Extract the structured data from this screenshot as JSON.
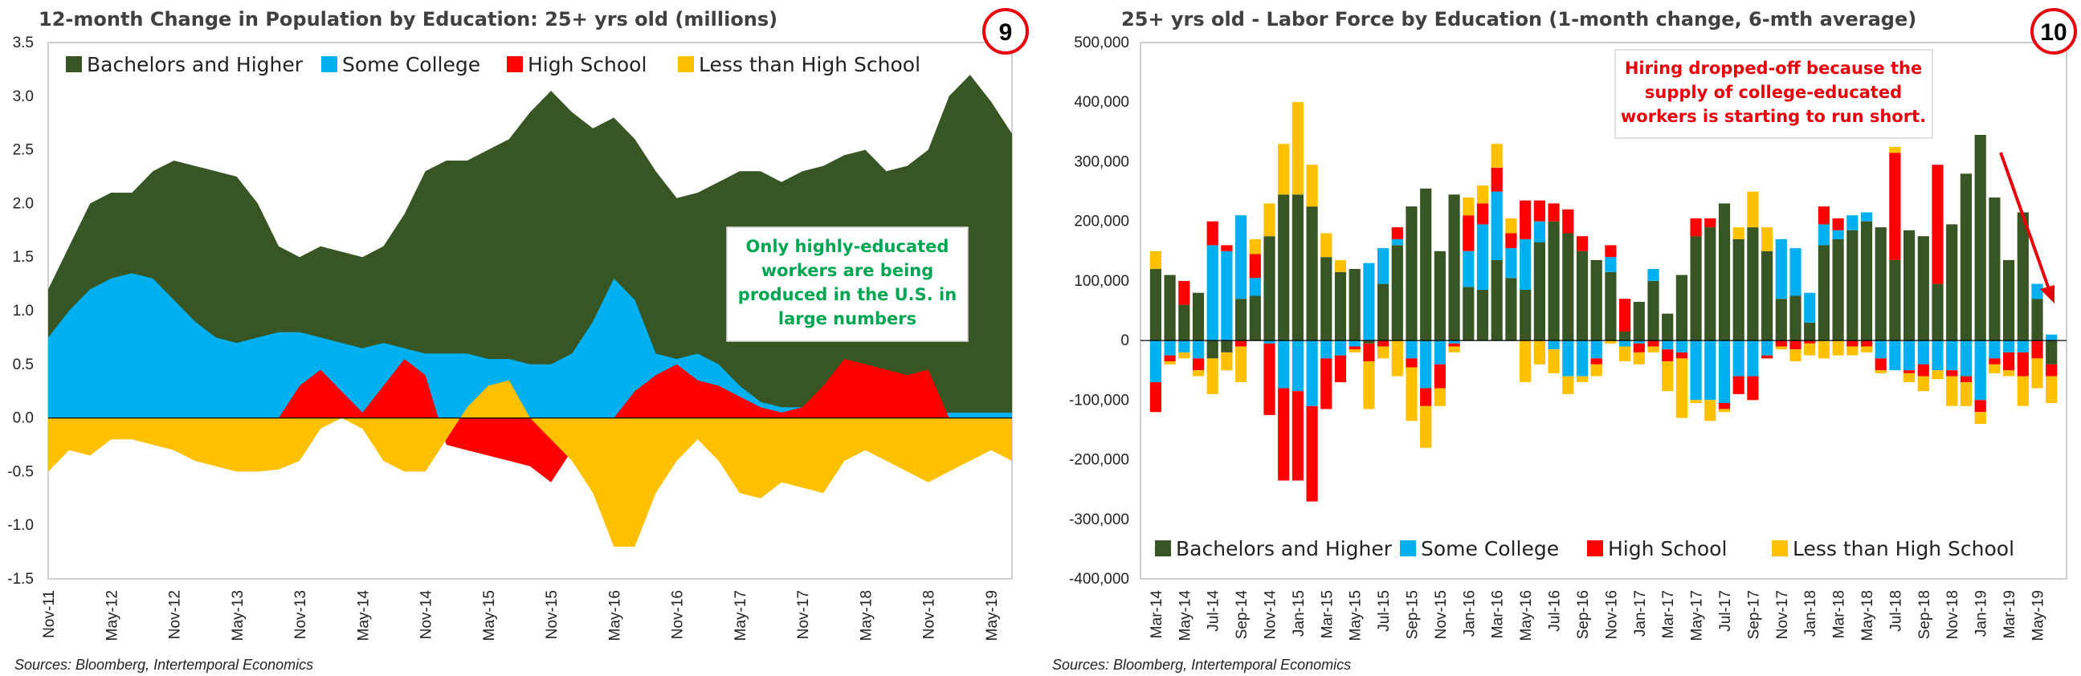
{
  "colors": {
    "bachelors": "#375623",
    "some_college": "#00B0F0",
    "high_school": "#FF0000",
    "less_than_hs": "#FFC000",
    "accent_red": "#E8000B",
    "note_green": "#00A651"
  },
  "left": {
    "title": "12-month Change in Population by Education: 25+ yrs old (millions)",
    "badge": "9",
    "source": "Sources: Bloomberg, Intertemporal Economics",
    "annotation": [
      "Only highly-educated",
      "workers are being",
      "produced in the U.S. in",
      "large numbers"
    ],
    "y_tick_labels": [
      "3.5",
      "3.0",
      "2.5",
      "2.0",
      "1.5",
      "1.0",
      "0.5",
      "0.0",
      "-0.5",
      "-1.0",
      "-1.5"
    ],
    "x_tick_labels": [
      "Nov-11",
      "May-12",
      "Nov-12",
      "May-13",
      "Nov-13",
      "May-14",
      "Nov-14",
      "May-15",
      "Nov-15",
      "May-16",
      "Nov-16",
      "May-17",
      "Nov-17",
      "May-18",
      "Nov-18",
      "May-19"
    ]
  },
  "right": {
    "title": "25+ yrs old - Labor Force by Education (1-month change, 6-mth average)",
    "badge": "10",
    "source": "Sources: Bloomberg, Intertemporal Economics",
    "annotation": [
      "Hiring dropped-off because the",
      "supply of college-educated",
      "workers is starting to run short."
    ],
    "y_tick_labels": [
      "500,000",
      "400,000",
      "300,000",
      "200,000",
      "100,000",
      "0",
      "-100,000",
      "-200,000",
      "-300,000",
      "-400,000"
    ],
    "x_tick_labels": [
      "Mar-14",
      "May-14",
      "Jul-14",
      "Sep-14",
      "Nov-14",
      "Jan-15",
      "Mar-15",
      "May-15",
      "Jul-15",
      "Sep-15",
      "Nov-15",
      "Jan-16",
      "Mar-16",
      "May-16",
      "Jul-16",
      "Sep-16",
      "Nov-16",
      "Jan-17",
      "Mar-17",
      "May-17",
      "Jul-17",
      "Sep-17",
      "Nov-17",
      "Jan-18",
      "Mar-18",
      "May-18",
      "Jul-18",
      "Sep-18",
      "Nov-18",
      "Jan-19",
      "Mar-19",
      "May-19"
    ]
  },
  "chart_data": [
    {
      "type": "area",
      "title": "12-month Change in Population by Education: 25+ yrs old (millions)",
      "ylabel": "",
      "ylim": [
        -1.5,
        3.5
      ],
      "x_start": "Nov-11",
      "x_end": "Jun-19",
      "grid": false,
      "legend_position": "top",
      "x": [
        "Nov-11",
        "Jan-12",
        "Mar-12",
        "May-12",
        "Jul-12",
        "Sep-12",
        "Nov-12",
        "Jan-13",
        "Mar-13",
        "May-13",
        "Jul-13",
        "Sep-13",
        "Nov-13",
        "Jan-14",
        "Mar-14",
        "May-14",
        "Jul-14",
        "Sep-14",
        "Nov-14",
        "Jan-15",
        "Mar-15",
        "May-15",
        "Jul-15",
        "Sep-15",
        "Nov-15",
        "Jan-16",
        "Mar-16",
        "May-16",
        "Jul-16",
        "Sep-16",
        "Nov-16",
        "Jan-17",
        "Mar-17",
        "May-17",
        "Jul-17",
        "Sep-17",
        "Nov-17",
        "Jan-18",
        "Mar-18",
        "May-18",
        "Jul-18",
        "Sep-18",
        "Nov-18",
        "Jan-19",
        "Mar-19",
        "May-19",
        "Jun-19"
      ],
      "series": [
        {
          "name": "Bachelors and Higher",
          "values": [
            1.2,
            1.6,
            2.0,
            2.1,
            2.1,
            2.3,
            2.4,
            2.35,
            2.3,
            2.25,
            2.0,
            1.6,
            1.5,
            1.6,
            1.55,
            1.5,
            1.6,
            1.9,
            2.3,
            2.4,
            2.4,
            2.5,
            2.6,
            2.85,
            3.05,
            2.85,
            2.7,
            2.8,
            2.6,
            2.3,
            2.05,
            2.1,
            2.2,
            2.3,
            2.3,
            2.2,
            2.3,
            2.35,
            2.45,
            2.5,
            2.3,
            2.35,
            2.5,
            3.0,
            3.2,
            2.95,
            2.65
          ]
        },
        {
          "name": "Some College",
          "values": [
            0.75,
            1.0,
            1.2,
            1.3,
            1.35,
            1.3,
            1.1,
            0.9,
            0.75,
            0.7,
            0.75,
            0.8,
            0.8,
            0.75,
            0.7,
            0.65,
            0.7,
            0.65,
            0.6,
            0.6,
            0.6,
            0.55,
            0.55,
            0.5,
            0.5,
            0.6,
            0.9,
            1.3,
            1.1,
            0.6,
            0.55,
            0.6,
            0.5,
            0.3,
            0.15,
            0.1,
            0.1,
            0.1,
            0.05,
            0.05,
            0.05,
            0.05,
            0.05,
            0.05,
            0.05,
            0.05,
            0.05
          ]
        },
        {
          "name": "High School",
          "values": [
            -0.3,
            -0.28,
            -0.25,
            -0.2,
            -0.18,
            -0.2,
            -0.18,
            0.0,
            0.0,
            0.0,
            0.0,
            0.0,
            0.3,
            0.45,
            0.25,
            0.05,
            0.3,
            0.55,
            0.4,
            -0.25,
            -0.3,
            -0.35,
            -0.4,
            -0.45,
            -0.6,
            -0.3,
            0.0,
            0.0,
            0.25,
            0.4,
            0.5,
            0.35,
            0.3,
            0.2,
            0.1,
            0.05,
            0.1,
            0.3,
            0.55,
            0.5,
            0.45,
            0.4,
            0.45,
            0.0,
            0.0,
            0.0,
            0.0
          ]
        },
        {
          "name": "Less than High School",
          "values": [
            -0.5,
            -0.3,
            -0.35,
            -0.2,
            -0.2,
            -0.25,
            -0.3,
            -0.4,
            -0.45,
            -0.5,
            -0.5,
            -0.48,
            -0.4,
            -0.1,
            0.0,
            -0.1,
            -0.4,
            -0.5,
            -0.5,
            -0.2,
            0.1,
            0.3,
            0.35,
            0.0,
            -0.2,
            -0.4,
            -0.7,
            -1.2,
            -1.2,
            -0.7,
            -0.4,
            -0.2,
            -0.4,
            -0.7,
            -0.75,
            -0.6,
            -0.65,
            -0.7,
            -0.4,
            -0.3,
            -0.4,
            -0.5,
            -0.6,
            -0.5,
            -0.4,
            -0.3,
            -0.4
          ]
        }
      ]
    },
    {
      "type": "bar",
      "title": "25+ yrs old - Labor Force by Education (1-month change, 6-mth average)",
      "ylabel": "",
      "ylim": [
        -400000,
        500000
      ],
      "stacked": true,
      "grid": false,
      "legend_position": "bottom",
      "categories": [
        "Mar-14",
        "Apr-14",
        "May-14",
        "Jun-14",
        "Jul-14",
        "Aug-14",
        "Sep-14",
        "Oct-14",
        "Nov-14",
        "Dec-14",
        "Jan-15",
        "Feb-15",
        "Mar-15",
        "Apr-15",
        "May-15",
        "Jun-15",
        "Jul-15",
        "Aug-15",
        "Sep-15",
        "Oct-15",
        "Nov-15",
        "Dec-15",
        "Jan-16",
        "Feb-16",
        "Mar-16",
        "Apr-16",
        "May-16",
        "Jun-16",
        "Jul-16",
        "Aug-16",
        "Sep-16",
        "Oct-16",
        "Nov-16",
        "Dec-16",
        "Jan-17",
        "Feb-17",
        "Mar-17",
        "Apr-17",
        "May-17",
        "Jun-17",
        "Jul-17",
        "Aug-17",
        "Sep-17",
        "Oct-17",
        "Nov-17",
        "Dec-17",
        "Jan-18",
        "Feb-18",
        "Mar-18",
        "Apr-18",
        "May-18",
        "Jun-18",
        "Jul-18",
        "Aug-18",
        "Sep-18",
        "Oct-18",
        "Nov-18",
        "Dec-18",
        "Jan-19",
        "Feb-19",
        "Mar-19",
        "Apr-19",
        "May-19",
        "Jun-19"
      ],
      "series": [
        {
          "name": "Bachelors and Higher",
          "values": [
            120000,
            110000,
            60000,
            80000,
            -30000,
            -20000,
            70000,
            75000,
            175000,
            245000,
            245000,
            225000,
            140000,
            115000,
            120000,
            -5000,
            95000,
            160000,
            225000,
            255000,
            150000,
            245000,
            90000,
            85000,
            135000,
            105000,
            85000,
            165000,
            200000,
            180000,
            150000,
            135000,
            115000,
            15000,
            65000,
            100000,
            45000,
            110000,
            175000,
            190000,
            230000,
            170000,
            190000,
            150000,
            70000,
            75000,
            30000,
            160000,
            170000,
            185000,
            200000,
            190000,
            135000,
            185000,
            175000,
            95000,
            195000,
            280000,
            345000,
            240000,
            135000,
            215000,
            70000,
            -40000
          ]
        },
        {
          "name": "Some College",
          "values": [
            -70000,
            -25000,
            -20000,
            -30000,
            160000,
            150000,
            140000,
            30000,
            -5000,
            -80000,
            -85000,
            -110000,
            -30000,
            -25000,
            -10000,
            130000,
            60000,
            10000,
            -30000,
            -80000,
            -40000,
            -5000,
            60000,
            110000,
            115000,
            50000,
            85000,
            35000,
            -15000,
            -60000,
            -60000,
            -30000,
            25000,
            -10000,
            -5000,
            20000,
            -15000,
            -20000,
            -100000,
            -100000,
            -105000,
            -60000,
            -60000,
            -25000,
            100000,
            80000,
            50000,
            35000,
            15000,
            25000,
            15000,
            -30000,
            -50000,
            -50000,
            -40000,
            -50000,
            -50000,
            -60000,
            -100000,
            -30000,
            -20000,
            -20000,
            25000,
            10000
          ]
        },
        {
          "name": "High School",
          "values": [
            -50000,
            -10000,
            40000,
            -20000,
            40000,
            10000,
            -10000,
            40000,
            -120000,
            -155000,
            -150000,
            -160000,
            -85000,
            -45000,
            -5000,
            -30000,
            -10000,
            20000,
            -15000,
            -30000,
            -40000,
            -5000,
            60000,
            35000,
            40000,
            25000,
            65000,
            35000,
            30000,
            40000,
            25000,
            -10000,
            20000,
            55000,
            -15000,
            -10000,
            -20000,
            -10000,
            30000,
            15000,
            -10000,
            -30000,
            -40000,
            -5000,
            -10000,
            -15000,
            -5000,
            30000,
            20000,
            -10000,
            -10000,
            -20000,
            180000,
            -5000,
            -20000,
            200000,
            -10000,
            -10000,
            -20000,
            -10000,
            -30000,
            -40000,
            -30000,
            -20000
          ]
        },
        {
          "name": "Less than High School",
          "values": [
            30000,
            -5000,
            -10000,
            -10000,
            -60000,
            -30000,
            -60000,
            25000,
            55000,
            85000,
            155000,
            70000,
            40000,
            20000,
            -5000,
            -80000,
            -20000,
            -60000,
            -90000,
            -70000,
            -30000,
            -10000,
            30000,
            30000,
            40000,
            25000,
            -70000,
            -40000,
            -40000,
            -30000,
            -10000,
            -20000,
            -5000,
            -25000,
            -20000,
            -10000,
            -50000,
            -100000,
            -5000,
            -35000,
            -5000,
            20000,
            60000,
            40000,
            -5000,
            -20000,
            -20000,
            -30000,
            -25000,
            -15000,
            -10000,
            -5000,
            10000,
            -15000,
            -25000,
            -15000,
            -50000,
            -40000,
            -20000,
            -15000,
            -10000,
            -50000,
            -50000,
            -45000
          ]
        }
      ]
    }
  ]
}
